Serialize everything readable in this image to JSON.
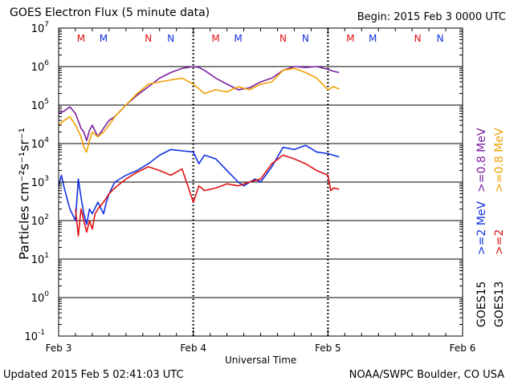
{
  "header": {
    "title": "GOES Electron Flux (5 minute data)",
    "begin": "Begin: 2015 Feb 3 0000 UTC"
  },
  "footer": {
    "updated": "Updated 2015 Feb  5 02:41:03 UTC",
    "credit": "NOAA/SWPC Boulder, CO USA"
  },
  "colors": {
    "purple": "#7a1fa2",
    "orange": "#f0a000",
    "blue": "#1030e0",
    "red": "#e01010",
    "black": "#000000"
  },
  "chart_data": {
    "type": "line",
    "title": "GOES Electron Flux (5 minute data)",
    "xlabel": "Universal Time",
    "ylabel": "Particles cm⁻²s⁻¹sr⁻¹",
    "yscale": "log",
    "ylim": [
      0.1,
      10000000
    ],
    "y_tick_values": [
      0.1,
      1,
      10,
      100,
      1000,
      10000,
      100000,
      1000000,
      10000000
    ],
    "y_tick_exponents": [
      "-1",
      "0",
      "1",
      "2",
      "3",
      "4",
      "5",
      "6",
      "7"
    ],
    "x_unit": "hours since 2015 Feb 3 0000 UTC",
    "xlim": [
      0,
      72
    ],
    "x_ticks": [
      {
        "hour": 0,
        "label": "Feb 3"
      },
      {
        "hour": 24,
        "label": "Feb 4"
      },
      {
        "hour": 48,
        "label": "Feb 5"
      },
      {
        "hour": 72,
        "label": "Feb 6"
      }
    ],
    "threshold": 1000,
    "local_time_markers": [
      {
        "hour": 4,
        "label": "M",
        "color": "red"
      },
      {
        "hour": 8,
        "label": "M",
        "color": "blue"
      },
      {
        "hour": 16,
        "label": "N",
        "color": "red"
      },
      {
        "hour": 20,
        "label": "N",
        "color": "blue"
      },
      {
        "hour": 28,
        "label": "M",
        "color": "red"
      },
      {
        "hour": 32,
        "label": "M",
        "color": "blue"
      },
      {
        "hour": 40,
        "label": "N",
        "color": "red"
      },
      {
        "hour": 44,
        "label": "N",
        "color": "blue"
      },
      {
        "hour": 52,
        "label": "M",
        "color": "red"
      },
      {
        "hour": 56,
        "label": "M",
        "color": "blue"
      },
      {
        "hour": 64,
        "label": "N",
        "color": "red"
      },
      {
        "hour": 68,
        "label": "N",
        "color": "blue"
      }
    ],
    "legend": [
      {
        "satellite": "GOES15",
        "entries": [
          {
            "text": ">=0.8 MeV",
            "color": "purple"
          },
          {
            "text": ">=2 MeV",
            "color": "blue"
          }
        ]
      },
      {
        "satellite": "GOES13",
        "entries": [
          {
            "text": ">=0.8 MeV",
            "color": "orange"
          },
          {
            "text": ">=2",
            "color": "red"
          }
        ]
      }
    ],
    "series": [
      {
        "name": "GOES15 >=0.8 MeV",
        "color": "purple",
        "points": [
          [
            0,
            60000
          ],
          [
            1,
            70000
          ],
          [
            2,
            90000
          ],
          [
            3,
            60000
          ],
          [
            4,
            25000
          ],
          [
            4.5,
            20000
          ],
          [
            5,
            12000
          ],
          [
            5.5,
            22000
          ],
          [
            6,
            30000
          ],
          [
            7,
            15000
          ],
          [
            8,
            25000
          ],
          [
            9,
            40000
          ],
          [
            10,
            50000
          ],
          [
            11,
            70000
          ],
          [
            12,
            100000
          ],
          [
            14,
            180000
          ],
          [
            16,
            300000
          ],
          [
            18,
            500000
          ],
          [
            20,
            700000
          ],
          [
            22,
            900000
          ],
          [
            24,
            1000000
          ],
          [
            25,
            950000
          ],
          [
            26,
            800000
          ],
          [
            28,
            500000
          ],
          [
            30,
            350000
          ],
          [
            32,
            250000
          ],
          [
            34,
            280000
          ],
          [
            36,
            400000
          ],
          [
            38,
            500000
          ],
          [
            40,
            800000
          ],
          [
            42,
            1000000
          ],
          [
            44,
            950000
          ],
          [
            46,
            1000000
          ],
          [
            48,
            850000
          ],
          [
            49,
            750000
          ],
          [
            50,
            700000
          ]
        ]
      },
      {
        "name": "GOES13 >=0.8 MeV",
        "color": "orange",
        "points": [
          [
            0,
            30000
          ],
          [
            1,
            40000
          ],
          [
            2,
            50000
          ],
          [
            3,
            30000
          ],
          [
            4,
            15000
          ],
          [
            4.5,
            8000
          ],
          [
            5,
            6000
          ],
          [
            5.5,
            12000
          ],
          [
            6,
            20000
          ],
          [
            7,
            15000
          ],
          [
            8,
            20000
          ],
          [
            9,
            30000
          ],
          [
            10,
            50000
          ],
          [
            12,
            100000
          ],
          [
            14,
            200000
          ],
          [
            16,
            350000
          ],
          [
            18,
            400000
          ],
          [
            20,
            450000
          ],
          [
            22,
            500000
          ],
          [
            24,
            350000
          ],
          [
            26,
            200000
          ],
          [
            28,
            250000
          ],
          [
            30,
            220000
          ],
          [
            32,
            300000
          ],
          [
            34,
            250000
          ],
          [
            36,
            350000
          ],
          [
            38,
            400000
          ],
          [
            40,
            800000
          ],
          [
            42,
            900000
          ],
          [
            44,
            700000
          ],
          [
            46,
            500000
          ],
          [
            48,
            250000
          ],
          [
            49,
            300000
          ],
          [
            50,
            260000
          ]
        ]
      },
      {
        "name": "GOES15 >=2 MeV",
        "color": "blue",
        "points": [
          [
            0,
            800
          ],
          [
            0.5,
            1500
          ],
          [
            1,
            700
          ],
          [
            2,
            200
          ],
          [
            3,
            100
          ],
          [
            3.5,
            1200
          ],
          [
            4,
            400
          ],
          [
            4.5,
            150
          ],
          [
            5,
            80
          ],
          [
            5.5,
            200
          ],
          [
            6,
            150
          ],
          [
            7,
            300
          ],
          [
            8,
            150
          ],
          [
            8.5,
            300
          ],
          [
            9,
            500
          ],
          [
            10,
            1000
          ],
          [
            12,
            1500
          ],
          [
            14,
            2000
          ],
          [
            16,
            3000
          ],
          [
            18,
            5000
          ],
          [
            20,
            7000
          ],
          [
            22,
            6500
          ],
          [
            24,
            6000
          ],
          [
            25,
            3000
          ],
          [
            26,
            5000
          ],
          [
            28,
            4000
          ],
          [
            30,
            2000
          ],
          [
            32,
            1000
          ],
          [
            33,
            800
          ],
          [
            35,
            1200
          ],
          [
            36,
            1000
          ],
          [
            38,
            2500
          ],
          [
            40,
            8000
          ],
          [
            42,
            7000
          ],
          [
            44,
            9000
          ],
          [
            46,
            6000
          ],
          [
            48,
            5500
          ],
          [
            50,
            4500
          ]
        ]
      },
      {
        "name": "GOES13 >=2 MeV",
        "color": "red",
        "points": [
          [
            3,
            200
          ],
          [
            3.5,
            40
          ],
          [
            4,
            200
          ],
          [
            4.5,
            100
          ],
          [
            5,
            50
          ],
          [
            5.5,
            100
          ],
          [
            6,
            60
          ],
          [
            6.5,
            150
          ],
          [
            7,
            200
          ],
          [
            8,
            300
          ],
          [
            9,
            500
          ],
          [
            10,
            700
          ],
          [
            12,
            1200
          ],
          [
            14,
            1800
          ],
          [
            16,
            2500
          ],
          [
            18,
            2000
          ],
          [
            20,
            1500
          ],
          [
            22,
            2200
          ],
          [
            24,
            300
          ],
          [
            25,
            800
          ],
          [
            26,
            600
          ],
          [
            28,
            700
          ],
          [
            30,
            900
          ],
          [
            32,
            800
          ],
          [
            34,
            1000
          ],
          [
            36,
            1200
          ],
          [
            38,
            3000
          ],
          [
            40,
            5000
          ],
          [
            42,
            4000
          ],
          [
            44,
            3000
          ],
          [
            46,
            2000
          ],
          [
            48,
            1500
          ],
          [
            48.5,
            600
          ],
          [
            49,
            700
          ],
          [
            50,
            650
          ]
        ]
      }
    ]
  }
}
